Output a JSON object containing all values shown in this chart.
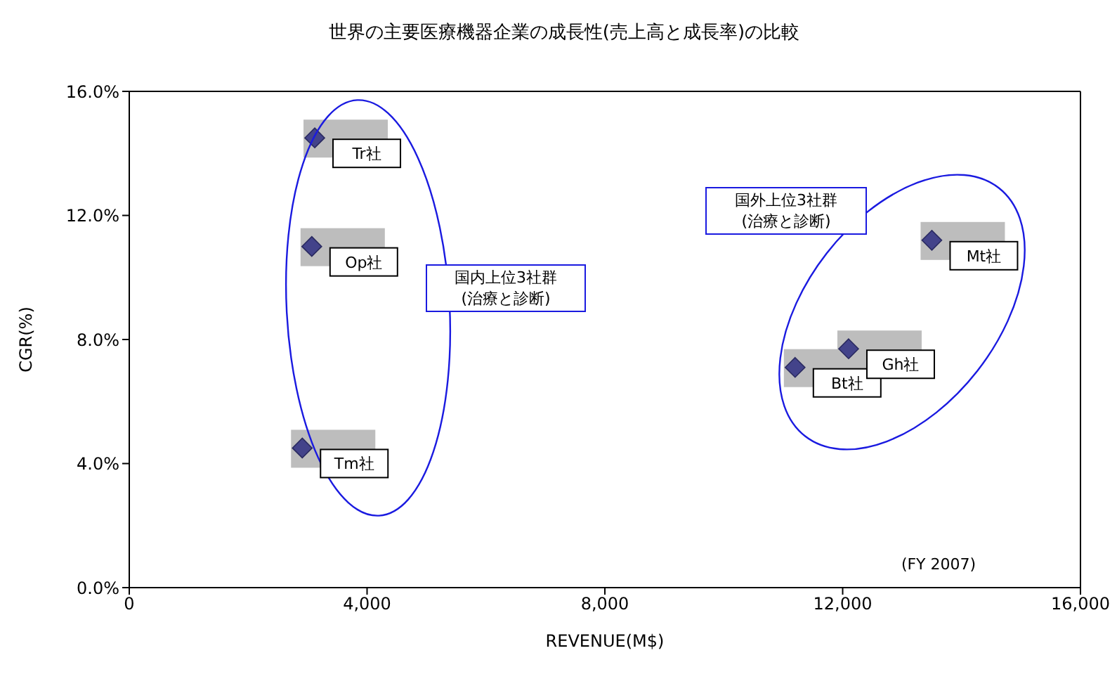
{
  "chart_data": {
    "type": "scatter",
    "title": "世界の主要医療機器企業の成長性(売上高と成長率)の比較",
    "xlabel": "REVENUE(M$)",
    "ylabel": "CGR(%)",
    "x": [
      3120,
      3070,
      2910,
      11200,
      12100,
      13500
    ],
    "values": [
      14.5,
      11.0,
      4.5,
      7.1,
      7.7,
      11.2
    ],
    "value_labels": [
      "Tr社",
      "Op社",
      "Tm社",
      "Bt社",
      "Gh社",
      "Mt社"
    ],
    "color": "#43438a",
    "marker": "diamond",
    "xlim": [
      0,
      16000
    ],
    "xticks": [
      0,
      {
        "value": 4000,
        "label": "4,000"
      },
      {
        "value": 8000,
        "label": "8,000"
      },
      {
        "value": 12000,
        "label": "12,000"
      },
      {
        "value": 16000,
        "label": "16,000"
      }
    ],
    "ylim": [
      0,
      16
    ],
    "yticks": [
      {
        "value": 0,
        "label": "0.0%"
      },
      {
        "value": 4,
        "label": "4.0%"
      },
      {
        "value": 8,
        "label": "8.0%"
      },
      {
        "value": 12,
        "label": "12.0%"
      },
      {
        "value": 16,
        "label": "16.0%"
      }
    ],
    "annotations": [
      "国内上位3社群\n(治療と診断)",
      "国外上位3社群\n(治療と診断)",
      "(FY 2007)"
    ]
  }
}
